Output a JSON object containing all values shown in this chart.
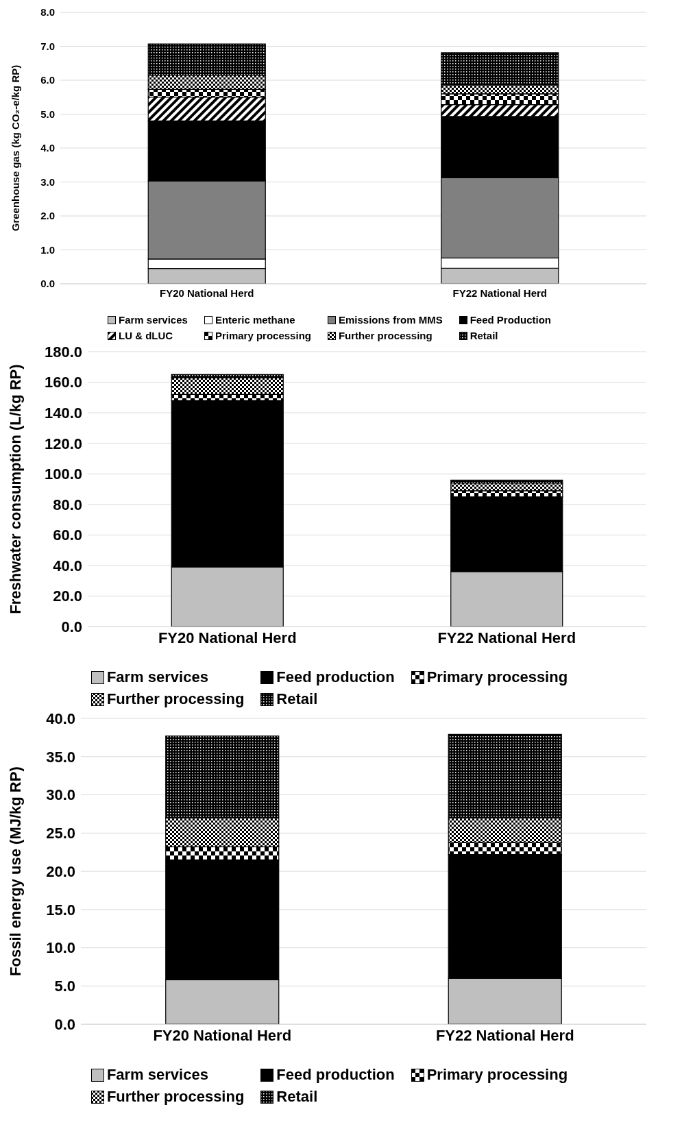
{
  "chart_data": [
    {
      "type": "bar",
      "stacked": true,
      "ylabel": "Greenhouse gas (kg CO₂-e/kg RP)",
      "categories": [
        "FY20 National Herd",
        "FY22 National Herd"
      ],
      "series": [
        {
          "name": "Farm services",
          "color": "#bfbfbf",
          "values": [
            0.45,
            0.46
          ]
        },
        {
          "name": "Enteric methane",
          "color": "#ffffff",
          "values": [
            0.28,
            0.3
          ]
        },
        {
          "name": "Emissions from MMS",
          "color": "#808080",
          "values": [
            2.3,
            2.37
          ]
        },
        {
          "name": "Feed Production",
          "color": "#000000",
          "values": [
            1.77,
            1.8
          ]
        },
        {
          "name": "LU & dLUC",
          "color": "#000000",
          "values": [
            0.7,
            0.35
          ]
        },
        {
          "name": "Primary processing",
          "color": "#000000",
          "values": [
            0.23,
            0.32
          ]
        },
        {
          "name": "Further processing",
          "color": "#000000",
          "values": [
            0.42,
            0.26
          ]
        },
        {
          "name": "Retail",
          "color": "#000000",
          "values": [
            0.92,
            0.95
          ]
        }
      ],
      "ylim": [
        0,
        8
      ],
      "yticks": [
        {
          "value": 0,
          "label": "0.0"
        },
        {
          "value": 1,
          "label": "1.0"
        },
        {
          "value": 2,
          "label": "2.0"
        },
        {
          "value": 3,
          "label": "3.0"
        },
        {
          "value": 4,
          "label": "4.0"
        },
        {
          "value": 5,
          "label": "5.0"
        },
        {
          "value": 6,
          "label": "6.0"
        },
        {
          "value": 7,
          "label": "7.0"
        },
        {
          "value": 8,
          "label": "8.0"
        }
      ],
      "grid": "y",
      "legend": "bottom"
    },
    {
      "type": "bar",
      "stacked": true,
      "ylabel": "Freshwater consumption (L/kg RP)",
      "categories": [
        "FY20 National Herd",
        "FY22 National Herd"
      ],
      "series": [
        {
          "name": "Farm services",
          "color": "#bfbfbf",
          "values": [
            39,
            36
          ]
        },
        {
          "name": "Feed production",
          "color": "#000000",
          "values": [
            109,
            49
          ]
        },
        {
          "name": "Primary processing",
          "color": "#000000",
          "values": [
            4,
            4
          ]
        },
        {
          "name": "Further processing",
          "color": "#000000",
          "values": [
            11,
            5
          ]
        },
        {
          "name": "Retail",
          "color": "#000000",
          "values": [
            2,
            2
          ]
        }
      ],
      "ylim": [
        0,
        180
      ],
      "yticks": [
        {
          "value": 0,
          "label": "0.0"
        },
        {
          "value": 20,
          "label": "20.0"
        },
        {
          "value": 40,
          "label": "40.0"
        },
        {
          "value": 60,
          "label": "60.0"
        },
        {
          "value": 80,
          "label": "80.0"
        },
        {
          "value": 100,
          "label": "100.0"
        },
        {
          "value": 120,
          "label": "120.0"
        },
        {
          "value": 140,
          "label": "140.0"
        },
        {
          "value": 160,
          "label": "160.0"
        },
        {
          "value": 180,
          "label": "180.0"
        }
      ],
      "grid": "y",
      "legend": "bottom"
    },
    {
      "type": "bar",
      "stacked": true,
      "ylabel": "Fossil energy use (MJ/kg RP)",
      "categories": [
        "FY20 National Herd",
        "FY22 National Herd"
      ],
      "series": [
        {
          "name": "Farm services",
          "color": "#bfbfbf",
          "values": [
            5.8,
            6.0
          ]
        },
        {
          "name": "Feed production",
          "color": "#000000",
          "values": [
            15.7,
            16.2
          ]
        },
        {
          "name": "Primary processing",
          "color": "#000000",
          "values": [
            1.7,
            1.6
          ]
        },
        {
          "name": "Further processing",
          "color": "#000000",
          "values": [
            3.8,
            3.2
          ]
        },
        {
          "name": "Retail",
          "color": "#000000",
          "values": [
            10.7,
            10.9
          ]
        }
      ],
      "ylim": [
        0,
        40
      ],
      "yticks": [
        {
          "value": 0,
          "label": "0.0"
        },
        {
          "value": 5,
          "label": "5.0"
        },
        {
          "value": 10,
          "label": "10.0"
        },
        {
          "value": 15,
          "label": "15.0"
        },
        {
          "value": 20,
          "label": "20.0"
        },
        {
          "value": 25,
          "label": "25.0"
        },
        {
          "value": 30,
          "label": "30.0"
        },
        {
          "value": 35,
          "label": "35.0"
        },
        {
          "value": 40,
          "label": "40.0"
        }
      ],
      "grid": "y",
      "legend": "bottom"
    }
  ]
}
